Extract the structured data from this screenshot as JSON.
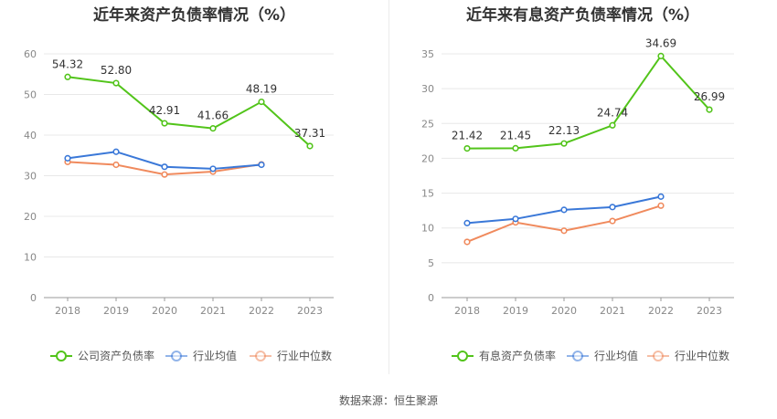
{
  "chart_data": [
    {
      "type": "line",
      "title": "近年来资产负债率情况（%）",
      "categories": [
        "2018",
        "2019",
        "2020",
        "2021",
        "2022",
        "2023"
      ],
      "ylim": [
        0,
        60
      ],
      "yticks": [
        0,
        10,
        20,
        30,
        40,
        50,
        60
      ],
      "grid": true,
      "legend_position": "bottom",
      "series": [
        {
          "name": "公司资产负债率",
          "color": "#52c41a",
          "values": [
            54.32,
            52.8,
            42.91,
            41.66,
            48.19,
            37.31
          ],
          "labels": [
            "54.32",
            "52.80",
            "42.91",
            "41.66",
            "48.19",
            "37.31"
          ]
        },
        {
          "name": "行业均值",
          "color": "#3a78d8",
          "values": [
            34.3,
            35.9,
            32.2,
            31.7,
            32.7,
            null
          ]
        },
        {
          "name": "行业中位数",
          "color": "#f08a5d",
          "values": [
            33.4,
            32.7,
            30.3,
            31.0,
            32.8,
            null
          ]
        }
      ]
    },
    {
      "type": "line",
      "title": "近年来有息资产负债率情况（%）",
      "categories": [
        "2018",
        "2019",
        "2020",
        "2021",
        "2022",
        "2023"
      ],
      "ylim": [
        0,
        35
      ],
      "yticks": [
        0,
        5,
        10,
        15,
        20,
        25,
        30,
        35
      ],
      "grid": true,
      "legend_position": "bottom",
      "series": [
        {
          "name": "有息资产负债率",
          "color": "#52c41a",
          "values": [
            21.42,
            21.45,
            22.13,
            24.74,
            34.69,
            26.99
          ],
          "labels": [
            "21.42",
            "21.45",
            "22.13",
            "24.74",
            "34.69",
            "26.99"
          ]
        },
        {
          "name": "行业均值",
          "color": "#3a78d8",
          "values": [
            10.7,
            11.3,
            12.6,
            13.0,
            14.5,
            null
          ]
        },
        {
          "name": "行业中位数",
          "color": "#f08a5d",
          "values": [
            8.0,
            10.8,
            9.6,
            11.0,
            13.2,
            null
          ]
        }
      ]
    }
  ],
  "footer": {
    "source": "数据来源：恒生聚源"
  }
}
